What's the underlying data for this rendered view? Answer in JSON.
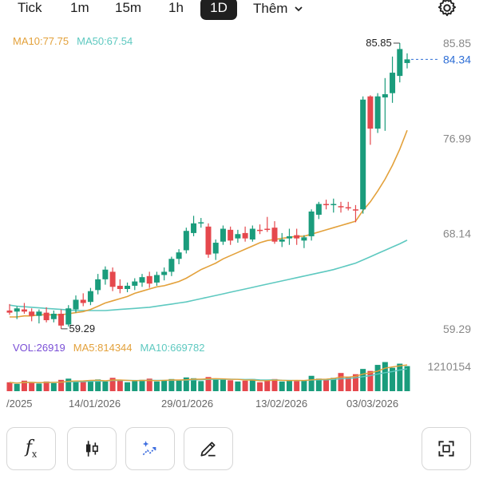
{
  "timeframes": [
    {
      "label": "Tick",
      "active": false
    },
    {
      "label": "1m",
      "active": false
    },
    {
      "label": "15m",
      "active": false
    },
    {
      "label": "1h",
      "active": false
    },
    {
      "label": "1D",
      "active": true
    }
  ],
  "more_label": "Thêm",
  "icons": {
    "settings": "gear-icon",
    "more": "chevron-down-icon",
    "formula": "fx-icon",
    "candle": "candlestick-icon",
    "ai": "sparkle-chart-icon",
    "draw": "pencil-icon",
    "fullscreen": "fullscreen-icon"
  },
  "indicators": {
    "ma10": "MA10:77.75",
    "ma50": "MA50:67.54"
  },
  "volume_indicators": {
    "vol": "VOL:26919",
    "ma5": "MA5:814344",
    "ma10": "MA10:669782"
  },
  "colors": {
    "up": "#1a9c7c",
    "down": "#e5484d",
    "ma10": "#e3a13b",
    "ma50": "#5ec9c0",
    "last_price": "#2f6fd6",
    "vol_label": "#7a4fd6"
  },
  "chart_data": {
    "type": "candlestick",
    "price_axis_labels": [
      "85.85",
      "76.99",
      "68.14",
      "59.29"
    ],
    "price_range": [
      59.29,
      85.85
    ],
    "high_annotation": "85.85",
    "low_annotation": "59.29",
    "last_price": "84.34",
    "volume_axis_label": "1210154",
    "date_labels": [
      "/2025",
      "14/01/2026",
      "29/01/2026",
      "13/02/2026",
      "03/03/2026"
    ],
    "candles": [
      [
        61.0,
        61.6,
        60.6,
        60.8
      ],
      [
        60.9,
        61.4,
        60.2,
        61.2
      ],
      [
        61.1,
        61.7,
        60.7,
        60.9
      ],
      [
        60.9,
        61.2,
        60.0,
        60.5
      ],
      [
        60.5,
        61.1,
        59.8,
        60.9
      ],
      [
        60.8,
        61.3,
        59.9,
        60.1
      ],
      [
        60.2,
        61.0,
        59.9,
        60.7
      ],
      [
        60.7,
        61.1,
        59.3,
        59.6
      ],
      [
        59.7,
        61.5,
        59.5,
        61.2
      ],
      [
        61.1,
        62.4,
        60.8,
        62.0
      ],
      [
        62.0,
        62.6,
        61.4,
        61.7
      ],
      [
        61.8,
        63.1,
        61.5,
        62.8
      ],
      [
        62.9,
        64.4,
        62.5,
        63.9
      ],
      [
        63.9,
        65.1,
        63.4,
        64.8
      ],
      [
        64.6,
        65.0,
        62.8,
        63.2
      ],
      [
        63.3,
        63.9,
        62.6,
        63.0
      ],
      [
        63.0,
        63.6,
        62.7,
        63.3
      ],
      [
        63.3,
        64.0,
        62.9,
        63.7
      ],
      [
        63.6,
        64.4,
        63.2,
        64.1
      ],
      [
        64.2,
        64.6,
        63.1,
        63.5
      ],
      [
        63.6,
        64.6,
        63.3,
        64.3
      ],
      [
        64.3,
        65.0,
        63.8,
        64.6
      ],
      [
        64.6,
        66.0,
        64.2,
        65.8
      ],
      [
        65.8,
        66.7,
        65.3,
        66.4
      ],
      [
        66.6,
        68.7,
        66.3,
        68.4
      ],
      [
        68.2,
        69.8,
        67.9,
        69.1
      ],
      [
        69.2,
        69.6,
        68.7,
        69.2
      ],
      [
        68.8,
        69.1,
        65.9,
        66.2
      ],
      [
        66.3,
        67.6,
        65.7,
        67.3
      ],
      [
        67.4,
        68.9,
        67.1,
        68.6
      ],
      [
        68.5,
        68.8,
        67.1,
        67.5
      ],
      [
        67.7,
        68.5,
        67.3,
        68.1
      ],
      [
        68.2,
        68.8,
        67.4,
        67.7
      ],
      [
        67.6,
        68.9,
        67.4,
        68.6
      ],
      [
        68.5,
        69.0,
        68.1,
        68.4
      ],
      [
        68.6,
        69.7,
        68.3,
        68.5
      ],
      [
        68.7,
        69.3,
        67.2,
        67.4
      ],
      [
        67.4,
        68.2,
        66.9,
        67.6
      ],
      [
        67.7,
        68.6,
        67.1,
        67.9
      ],
      [
        68.0,
        68.6,
        67.1,
        67.7
      ],
      [
        67.5,
        68.0,
        66.8,
        67.8
      ],
      [
        67.9,
        70.4,
        67.5,
        70.2
      ],
      [
        69.9,
        71.1,
        69.5,
        70.9
      ],
      [
        70.9,
        71.3,
        70.4,
        70.8
      ],
      [
        70.8,
        71.4,
        70.1,
        70.9
      ],
      [
        70.7,
        71.1,
        70.1,
        70.6
      ],
      [
        70.6,
        71.1,
        70.3,
        70.5
      ],
      [
        70.4,
        70.8,
        69.2,
        70.3
      ],
      [
        70.4,
        80.9,
        70.0,
        80.6
      ],
      [
        80.9,
        81.0,
        76.4,
        77.9
      ],
      [
        77.9,
        81.2,
        77.5,
        80.9
      ],
      [
        80.8,
        82.6,
        77.7,
        81.1
      ],
      [
        81.2,
        84.6,
        80.3,
        83.1
      ],
      [
        82.8,
        85.85,
        82.2,
        85.3
      ],
      [
        84.0,
        84.9,
        83.5,
        84.34
      ]
    ],
    "volumes": [
      0.22,
      0.18,
      0.26,
      0.21,
      0.19,
      0.24,
      0.2,
      0.28,
      0.31,
      0.23,
      0.25,
      0.27,
      0.29,
      0.24,
      0.33,
      0.26,
      0.22,
      0.25,
      0.28,
      0.31,
      0.24,
      0.26,
      0.3,
      0.27,
      0.34,
      0.32,
      0.25,
      0.35,
      0.29,
      0.31,
      0.27,
      0.24,
      0.26,
      0.3,
      0.22,
      0.28,
      0.3,
      0.24,
      0.27,
      0.25,
      0.26,
      0.38,
      0.31,
      0.29,
      0.33,
      0.45,
      0.36,
      0.42,
      0.55,
      0.5,
      0.65,
      0.72,
      0.58,
      0.68,
      0.62
    ],
    "ma10_series": [
      60.4,
      60.4,
      60.5,
      60.5,
      60.6,
      60.6,
      60.6,
      60.6,
      60.7,
      60.8,
      60.9,
      61.1,
      61.4,
      61.7,
      61.9,
      62.1,
      62.3,
      62.6,
      62.8,
      63.0,
      63.2,
      63.3,
      63.5,
      63.7,
      64.0,
      64.4,
      64.8,
      65.1,
      65.4,
      65.8,
      66.1,
      66.4,
      66.7,
      67.0,
      67.3,
      67.5,
      67.6,
      67.7,
      67.8,
      67.9,
      67.9,
      68.1,
      68.3,
      68.5,
      68.7,
      68.9,
      69.1,
      69.3,
      70.3,
      71.1,
      72.1,
      73.2,
      74.5,
      76.0,
      77.75
    ],
    "ma50_series": [
      61.5,
      61.4,
      61.35,
      61.3,
      61.25,
      61.2,
      61.15,
      61.1,
      61.05,
      61.0,
      61.0,
      61.0,
      61.0,
      61.0,
      61.05,
      61.1,
      61.15,
      61.2,
      61.25,
      61.3,
      61.4,
      61.5,
      61.6,
      61.7,
      61.8,
      61.95,
      62.1,
      62.25,
      62.4,
      62.55,
      62.7,
      62.85,
      63.0,
      63.15,
      63.3,
      63.45,
      63.6,
      63.75,
      63.9,
      64.05,
      64.2,
      64.35,
      64.5,
      64.65,
      64.8,
      65.0,
      65.2,
      65.4,
      65.7,
      66.0,
      66.3,
      66.6,
      66.9,
      67.2,
      67.54
    ]
  }
}
